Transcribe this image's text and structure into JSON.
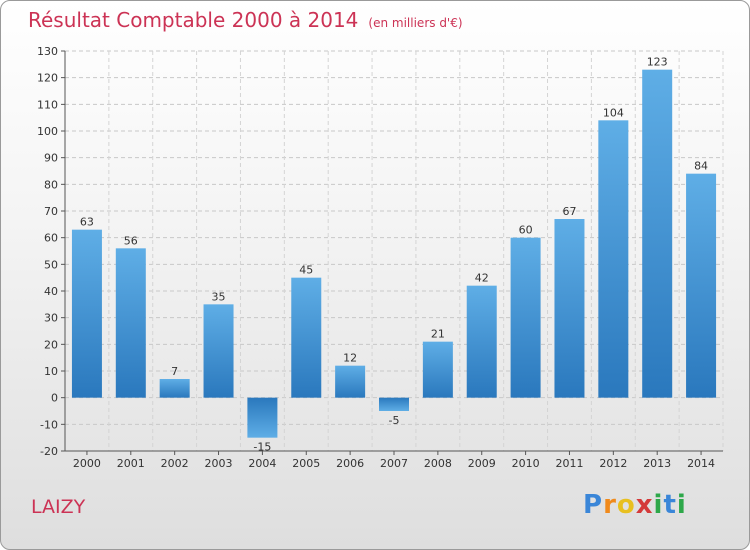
{
  "chart_data": {
    "type": "bar",
    "title": "Résultat Comptable 2000 à 2014",
    "subtitle": "(en milliers d'€)",
    "categories": [
      "2000",
      "2001",
      "2002",
      "2003",
      "2004",
      "2005",
      "2006",
      "2007",
      "2008",
      "2009",
      "2010",
      "2011",
      "2012",
      "2013",
      "2014"
    ],
    "values": [
      63,
      56,
      7,
      35,
      -15,
      45,
      12,
      -5,
      21,
      42,
      60,
      67,
      104,
      123,
      84
    ],
    "value_labels": [
      "63",
      "56",
      "7",
      "35",
      "-15",
      "45",
      "12",
      "-5",
      "21",
      "42",
      "60",
      "67",
      "104",
      "123",
      "84"
    ],
    "ylim": [
      -20,
      130
    ],
    "yticks": [
      -20,
      -10,
      0,
      10,
      20,
      30,
      40,
      50,
      60,
      70,
      80,
      90,
      100,
      110,
      120,
      130
    ],
    "ytick_labels": [
      "-20",
      "-10",
      "0",
      "10",
      "20",
      "30",
      "40",
      "50",
      "60",
      "70",
      "80",
      "90",
      "100",
      "110",
      "120",
      "130"
    ],
    "grid": true,
    "xlabel": "",
    "ylabel": ""
  },
  "place_name": "LAIZY",
  "brand": {
    "letters": [
      "P",
      "r",
      "o",
      "x",
      "i",
      "t",
      "i"
    ],
    "colors": [
      "#3a86d8",
      "#f08a1c",
      "#e8c020",
      "#d43a3a",
      "#2ea84a",
      "#3a86d8",
      "#2ea84a"
    ]
  },
  "colors": {
    "title": "#cc3355",
    "bar_light": "#5faee6",
    "bar_dark": "#2a78bd"
  }
}
